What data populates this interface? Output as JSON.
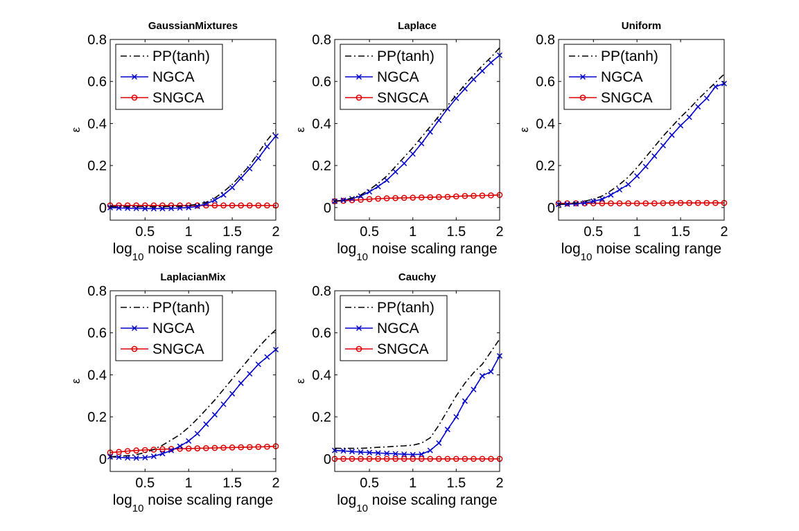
{
  "chart_data": [
    {
      "type": "line",
      "title": "GaussianMixtures",
      "xlabel": "log10 noise scaling range",
      "xlabel_parts": {
        "prefix": "log",
        "sub": "10",
        "suffix": " noise scaling range"
      },
      "ylabel": "ε",
      "xlim": [
        0.1,
        2
      ],
      "ylim": [
        -0.06,
        0.8
      ],
      "xticks": [
        0.5,
        1,
        1.5,
        2
      ],
      "xtick_labels": [
        "0.5",
        "1",
        "1.5",
        "2"
      ],
      "yticks": [
        0,
        0.2,
        0.4,
        0.6,
        0.8
      ],
      "ytick_labels": [
        "0",
        "0.2",
        "0.4",
        "0.6",
        "0.8"
      ],
      "legend": "top-left",
      "x": [
        0.1,
        0.2,
        0.3,
        0.4,
        0.5,
        0.6,
        0.7,
        0.8,
        0.9,
        1.0,
        1.1,
        1.2,
        1.3,
        1.4,
        1.5,
        1.6,
        1.7,
        1.8,
        1.9,
        2.0
      ],
      "series": [
        {
          "name": "PP(tanh)",
          "color": "#000000",
          "dash": "dashdot",
          "marker": "none",
          "values": [
            0.005,
            0.004,
            0.004,
            0.004,
            0.004,
            0.004,
            0.004,
            0.005,
            0.006,
            0.01,
            0.015,
            0.025,
            0.045,
            0.075,
            0.11,
            0.155,
            0.2,
            0.26,
            0.32,
            0.37
          ]
        },
        {
          "name": "NGCA",
          "color": "#0000cc",
          "dash": "solid",
          "marker": "x",
          "values": [
            0.0,
            -0.002,
            -0.003,
            -0.004,
            -0.005,
            -0.005,
            -0.005,
            -0.004,
            -0.002,
            0.0,
            0.006,
            0.018,
            0.035,
            0.06,
            0.095,
            0.14,
            0.185,
            0.235,
            0.29,
            0.34
          ]
        },
        {
          "name": "SNGCA",
          "color": "#dd0000",
          "dash": "solid",
          "marker": "o",
          "values": [
            0.01,
            0.01,
            0.01,
            0.01,
            0.01,
            0.01,
            0.01,
            0.01,
            0.01,
            0.01,
            0.01,
            0.01,
            0.01,
            0.01,
            0.01,
            0.01,
            0.01,
            0.01,
            0.01,
            0.01
          ]
        }
      ]
    },
    {
      "type": "line",
      "title": "Laplace",
      "xlabel": "log10 noise scaling range",
      "xlabel_parts": {
        "prefix": "log",
        "sub": "10",
        "suffix": " noise scaling range"
      },
      "ylabel": "ε",
      "xlim": [
        0.1,
        2
      ],
      "ylim": [
        -0.06,
        0.8
      ],
      "xticks": [
        0.5,
        1,
        1.5,
        2
      ],
      "xtick_labels": [
        "0.5",
        "1",
        "1.5",
        "2"
      ],
      "yticks": [
        0,
        0.2,
        0.4,
        0.6,
        0.8
      ],
      "ytick_labels": [
        "0",
        "0.2",
        "0.4",
        "0.6",
        "0.8"
      ],
      "legend": "top-left",
      "x": [
        0.1,
        0.2,
        0.3,
        0.4,
        0.5,
        0.6,
        0.7,
        0.8,
        0.9,
        1.0,
        1.1,
        1.2,
        1.3,
        1.4,
        1.5,
        1.6,
        1.7,
        1.8,
        1.9,
        2.0
      ],
      "series": [
        {
          "name": "PP(tanh)",
          "color": "#000000",
          "dash": "dashdot",
          "marker": "none",
          "values": [
            0.03,
            0.035,
            0.045,
            0.06,
            0.085,
            0.115,
            0.15,
            0.195,
            0.24,
            0.285,
            0.335,
            0.385,
            0.435,
            0.485,
            0.535,
            0.585,
            0.63,
            0.675,
            0.715,
            0.76
          ]
        },
        {
          "name": "NGCA",
          "color": "#0000cc",
          "dash": "solid",
          "marker": "x",
          "values": [
            0.03,
            0.035,
            0.042,
            0.055,
            0.075,
            0.1,
            0.13,
            0.17,
            0.21,
            0.255,
            0.305,
            0.36,
            0.415,
            0.47,
            0.52,
            0.565,
            0.61,
            0.65,
            0.69,
            0.725
          ]
        },
        {
          "name": "SNGCA",
          "color": "#dd0000",
          "dash": "solid",
          "marker": "o",
          "values": [
            0.03,
            0.032,
            0.035,
            0.037,
            0.04,
            0.042,
            0.044,
            0.045,
            0.046,
            0.047,
            0.048,
            0.049,
            0.05,
            0.051,
            0.053,
            0.055,
            0.056,
            0.057,
            0.058,
            0.06
          ]
        }
      ]
    },
    {
      "type": "line",
      "title": "Uniform",
      "xlabel": "log10 noise scaling range",
      "xlabel_parts": {
        "prefix": "log",
        "sub": "10",
        "suffix": " noise scaling range"
      },
      "ylabel": "ε",
      "xlim": [
        0.1,
        2
      ],
      "ylim": [
        -0.06,
        0.8
      ],
      "xticks": [
        0.5,
        1,
        1.5,
        2
      ],
      "xtick_labels": [
        "0.5",
        "1",
        "1.5",
        "2"
      ],
      "yticks": [
        0,
        0.2,
        0.4,
        0.6,
        0.8
      ],
      "ytick_labels": [
        "0",
        "0.2",
        "0.4",
        "0.6",
        "0.8"
      ],
      "legend": "top-left",
      "x": [
        0.1,
        0.2,
        0.3,
        0.4,
        0.5,
        0.6,
        0.7,
        0.8,
        0.9,
        1.0,
        1.1,
        1.2,
        1.3,
        1.4,
        1.5,
        1.6,
        1.7,
        1.8,
        1.9,
        2.0
      ],
      "series": [
        {
          "name": "PP(tanh)",
          "color": "#000000",
          "dash": "dashdot",
          "marker": "none",
          "values": [
            0.015,
            0.018,
            0.022,
            0.03,
            0.04,
            0.055,
            0.08,
            0.11,
            0.145,
            0.19,
            0.24,
            0.29,
            0.34,
            0.385,
            0.43,
            0.47,
            0.515,
            0.555,
            0.595,
            0.635
          ]
        },
        {
          "name": "NGCA",
          "color": "#0000cc",
          "dash": "solid",
          "marker": "x",
          "values": [
            0.015,
            0.016,
            0.018,
            0.022,
            0.03,
            0.04,
            0.06,
            0.085,
            0.11,
            0.15,
            0.195,
            0.245,
            0.295,
            0.345,
            0.39,
            0.43,
            0.48,
            0.52,
            0.575,
            0.59
          ]
        },
        {
          "name": "SNGCA",
          "color": "#dd0000",
          "dash": "solid",
          "marker": "o",
          "values": [
            0.02,
            0.02,
            0.02,
            0.02,
            0.02,
            0.02,
            0.02,
            0.02,
            0.02,
            0.02,
            0.02,
            0.02,
            0.021,
            0.022,
            0.022,
            0.022,
            0.022,
            0.022,
            0.022,
            0.022
          ]
        }
      ]
    },
    {
      "type": "line",
      "title": "LaplacianMix",
      "xlabel": "log10 noise scaling range",
      "xlabel_parts": {
        "prefix": "log",
        "sub": "10",
        "suffix": " noise scaling range"
      },
      "ylabel": "ε",
      "xlim": [
        0.1,
        2
      ],
      "ylim": [
        -0.06,
        0.8
      ],
      "xticks": [
        0.5,
        1,
        1.5,
        2
      ],
      "xtick_labels": [
        "0.5",
        "1",
        "1.5",
        "2"
      ],
      "yticks": [
        0,
        0.2,
        0.4,
        0.6,
        0.8
      ],
      "ytick_labels": [
        "0",
        "0.2",
        "0.4",
        "0.6",
        "0.8"
      ],
      "legend": "top-left",
      "x": [
        0.1,
        0.2,
        0.3,
        0.4,
        0.5,
        0.6,
        0.7,
        0.8,
        0.9,
        1.0,
        1.1,
        1.2,
        1.3,
        1.4,
        1.5,
        1.6,
        1.7,
        1.8,
        1.9,
        2.0
      ],
      "series": [
        {
          "name": "PP(tanh)",
          "color": "#000000",
          "dash": "dashdot",
          "marker": "none",
          "values": [
            0.01,
            0.012,
            0.015,
            0.02,
            0.03,
            0.045,
            0.065,
            0.09,
            0.115,
            0.15,
            0.19,
            0.235,
            0.28,
            0.33,
            0.38,
            0.43,
            0.48,
            0.53,
            0.575,
            0.615
          ]
        },
        {
          "name": "NGCA",
          "color": "#0000cc",
          "dash": "solid",
          "marker": "x",
          "values": [
            0.01,
            0.008,
            0.005,
            0.004,
            0.006,
            0.012,
            0.025,
            0.04,
            0.06,
            0.085,
            0.12,
            0.165,
            0.21,
            0.26,
            0.31,
            0.36,
            0.405,
            0.45,
            0.485,
            0.52
          ]
        },
        {
          "name": "SNGCA",
          "color": "#dd0000",
          "dash": "solid",
          "marker": "o",
          "values": [
            0.03,
            0.033,
            0.037,
            0.04,
            0.042,
            0.044,
            0.046,
            0.047,
            0.048,
            0.049,
            0.05,
            0.051,
            0.052,
            0.053,
            0.054,
            0.055,
            0.056,
            0.057,
            0.058,
            0.06
          ]
        }
      ]
    },
    {
      "type": "line",
      "title": "Cauchy",
      "xlabel": "log10 noise scaling range",
      "xlabel_parts": {
        "prefix": "log",
        "sub": "10",
        "suffix": " noise scaling range"
      },
      "ylabel": "ε",
      "xlim": [
        0.1,
        2
      ],
      "ylim": [
        -0.06,
        0.8
      ],
      "xticks": [
        0.5,
        1,
        1.5,
        2
      ],
      "xtick_labels": [
        "0.5",
        "1",
        "1.5",
        "2"
      ],
      "yticks": [
        0,
        0.2,
        0.4,
        0.6,
        0.8
      ],
      "ytick_labels": [
        "0",
        "0.2",
        "0.4",
        "0.6",
        "0.8"
      ],
      "legend": "top-left",
      "x": [
        0.1,
        0.2,
        0.3,
        0.4,
        0.5,
        0.6,
        0.7,
        0.8,
        0.9,
        1.0,
        1.1,
        1.2,
        1.3,
        1.4,
        1.5,
        1.6,
        1.7,
        1.8,
        1.9,
        2.0
      ],
      "series": [
        {
          "name": "PP(tanh)",
          "color": "#000000",
          "dash": "dashdot",
          "marker": "none",
          "values": [
            0.05,
            0.05,
            0.05,
            0.05,
            0.052,
            0.055,
            0.057,
            0.06,
            0.062,
            0.065,
            0.075,
            0.1,
            0.16,
            0.23,
            0.3,
            0.36,
            0.41,
            0.45,
            0.51,
            0.57
          ]
        },
        {
          "name": "NGCA",
          "color": "#0000cc",
          "dash": "solid",
          "marker": "x",
          "values": [
            0.04,
            0.038,
            0.035,
            0.032,
            0.03,
            0.028,
            0.026,
            0.024,
            0.022,
            0.02,
            0.022,
            0.04,
            0.075,
            0.14,
            0.2,
            0.275,
            0.33,
            0.395,
            0.415,
            0.49
          ]
        },
        {
          "name": "SNGCA",
          "color": "#dd0000",
          "dash": "solid",
          "marker": "o",
          "values": [
            0.0,
            0.0,
            0.0,
            0.0,
            0.0,
            0.0,
            0.0,
            0.0,
            0.0,
            0.0,
            0.0,
            0.0,
            0.0,
            0.0,
            0.0,
            0.0,
            0.0,
            0.0,
            0.0,
            0.0
          ]
        }
      ]
    }
  ]
}
